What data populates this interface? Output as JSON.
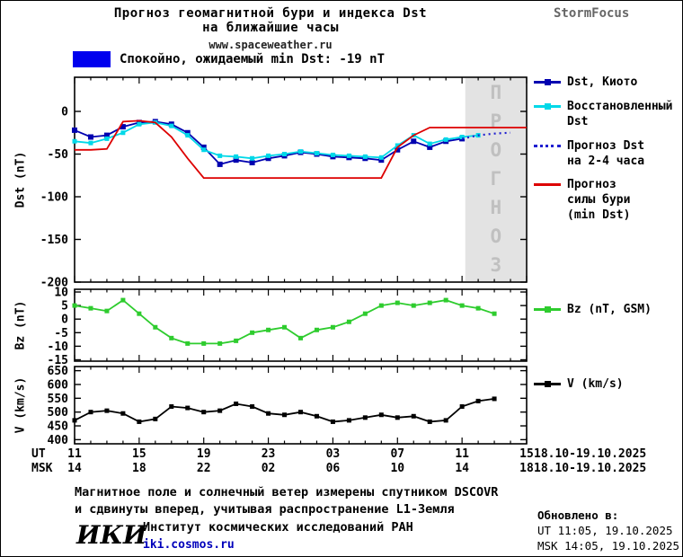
{
  "header": {
    "title_line1": "Прогноз геомагнитной бури и индекса Dst",
    "title_line2": "на ближайшие часы",
    "site_link": "www.spaceweather.ru",
    "brand": "StormFocus"
  },
  "status": {
    "text": "Спокойно, ожидаемый min Dst: -19 nT",
    "color": "#0000ee"
  },
  "chart_data": [
    {
      "type": "line",
      "ylabel": "Dst (nT)",
      "ylim": [
        -200,
        40
      ],
      "yticks": [
        0,
        -50,
        -100,
        -150,
        -200
      ],
      "xlim": [
        0,
        28
      ],
      "xticks": [
        0,
        4,
        8,
        12,
        16,
        20,
        24,
        28
      ],
      "x_unit": "hours, 11 UT 18.10.2025 to 15 UT 19.10.2025",
      "forecast_region": {
        "x_start": 24.2,
        "x_end": 28,
        "label": "ПРОГНОЗ"
      },
      "series": [
        {
          "name": "Dst, Киото",
          "color": "#0000b0",
          "marker": "square",
          "msize": 6,
          "x0": 0,
          "values": [
            -22,
            -30,
            -28,
            -18,
            -13,
            -12,
            -15,
            -25,
            -42,
            -62,
            -57,
            -60,
            -55,
            -52,
            -48,
            -50,
            -53,
            -54,
            -55,
            -57,
            -45,
            -35,
            -42,
            -35,
            -32
          ]
        },
        {
          "name": "Восстановленный\nDst",
          "color": "#00d8e8",
          "marker": "square",
          "msize": 5,
          "x0": 0,
          "values": [
            -35,
            -37,
            -32,
            -25,
            -15,
            -13,
            -17,
            -28,
            -45,
            -52,
            -53,
            -55,
            -52,
            -50,
            -47,
            -49,
            -51,
            -52,
            -53,
            -54,
            -40,
            -28,
            -38,
            -33,
            -30,
            -28
          ]
        },
        {
          "name": "Прогноз Dst\nна 2-4 часа",
          "color": "#2020d0",
          "marker": "none",
          "dash": "2 4",
          "width": 2.2,
          "x0": 24,
          "values": [
            -32,
            -28,
            -26,
            -25
          ]
        },
        {
          "name": "Прогноз\nсилы бури\n(min Dst)",
          "color": "#dd0000",
          "marker": "none",
          "x0": 0,
          "values": [
            -45,
            -45,
            -44,
            -12,
            -11,
            -13,
            -30,
            -55,
            -78,
            -78,
            -78,
            -78,
            -78,
            -78,
            -78,
            -78,
            -78,
            -78,
            -78,
            -78,
            -42,
            -28,
            -19,
            -19,
            -19,
            -19,
            -19,
            -19,
            -19
          ]
        }
      ]
    },
    {
      "type": "line",
      "ylabel": "Bz (nT)",
      "ylim": [
        -15.5,
        11
      ],
      "yticks": [
        10,
        5,
        0,
        -5,
        -10,
        -15
      ],
      "xlim": [
        0,
        28
      ],
      "xticks": [
        0,
        4,
        8,
        12,
        16,
        20,
        24,
        28
      ],
      "series": [
        {
          "name": "Bz (nT, GSM)",
          "color": "#2ecc2e",
          "marker": "square",
          "msize": 5,
          "x0": 0,
          "values": [
            5,
            4,
            3,
            7,
            2,
            -3,
            -7,
            -9,
            -9,
            -9,
            -8,
            -5,
            -4,
            -3,
            -7,
            -4,
            -3,
            -1,
            2,
            5,
            6,
            5,
            6,
            7,
            5,
            4,
            2
          ]
        }
      ]
    },
    {
      "type": "line",
      "ylabel": "V (km/s)",
      "ylim": [
        385,
        665
      ],
      "yticks": [
        650,
        600,
        550,
        500,
        450,
        400
      ],
      "xlim": [
        0,
        28
      ],
      "xticks": [
        0,
        4,
        8,
        12,
        16,
        20,
        24,
        28
      ],
      "series": [
        {
          "name": "V (km/s)",
          "color": "#000000",
          "marker": "square",
          "msize": 5,
          "x0": 0,
          "values": [
            470,
            500,
            505,
            495,
            465,
            475,
            520,
            515,
            500,
            505,
            530,
            520,
            495,
            490,
            500,
            485,
            465,
            470,
            480,
            490,
            480,
            485,
            465,
            470,
            520,
            540,
            548
          ]
        }
      ]
    }
  ],
  "xaxis": {
    "ut_label": "UT",
    "msk_label": "MSK",
    "ut_hours": [
      "11",
      "15",
      "19",
      "23",
      "03",
      "07",
      "11",
      "15"
    ],
    "msk_hours": [
      "14",
      "18",
      "22",
      "02",
      "06",
      "10",
      "14",
      "18"
    ],
    "ut_date_range": "18.10-19.10.2025",
    "msk_date_range": "18.10-19.10.2025"
  },
  "footer": {
    "note_line1": "Магнитное поле и солнечный ветер измерены спутником DSCOVR",
    "note_line2": "и сдвинуты вперед, учитывая распространение L1-Земля",
    "updated_label": "Обновлено в:",
    "updated_ut": "UT  11:05, 19.10.2025",
    "updated_msk": "MSK 14:05, 19.10.2025",
    "logo": "ИКИ",
    "institute": "Институт космических исследований РАН",
    "institute_link": "iki.cosmos.ru"
  }
}
